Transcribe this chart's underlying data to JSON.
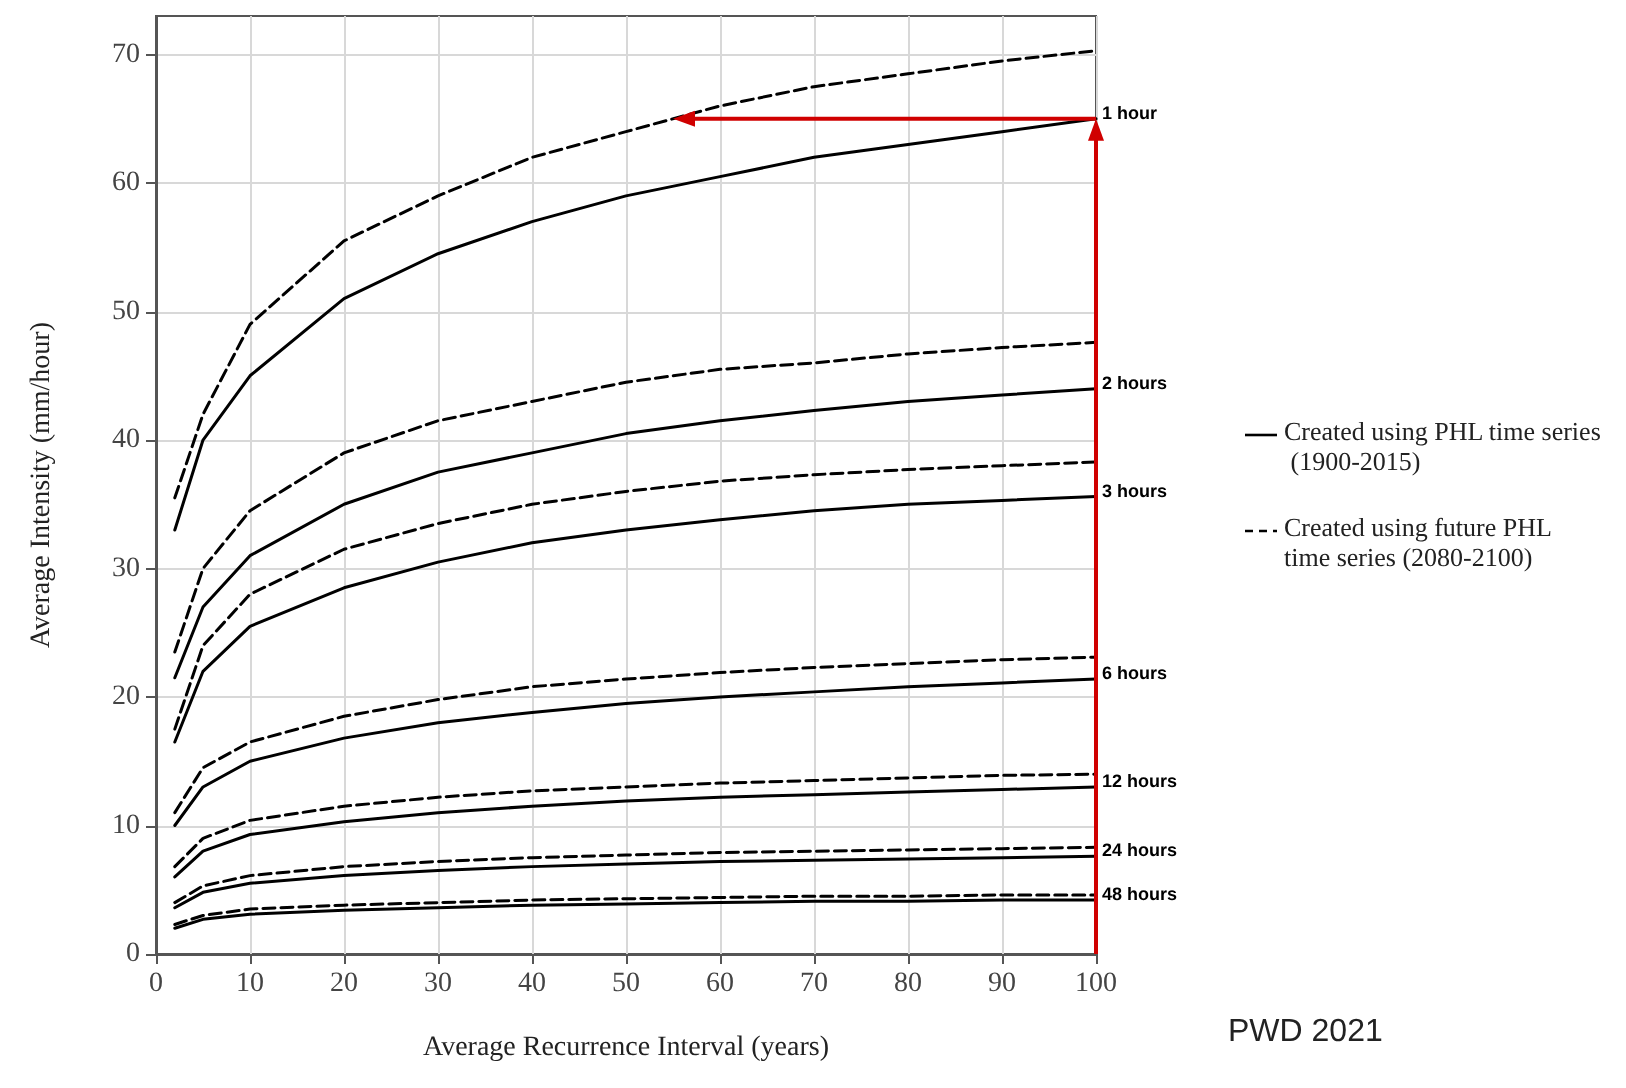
{
  "chart_data": {
    "type": "line",
    "xlabel": "Average Recurrence Interval (years)",
    "ylabel": "Average Intensity (mm/hour)",
    "x": [
      2,
      5,
      10,
      20,
      30,
      40,
      50,
      60,
      70,
      80,
      90,
      100
    ],
    "xlim": [
      0,
      100
    ],
    "xticks": [
      0,
      10,
      20,
      30,
      40,
      50,
      60,
      70,
      80,
      90,
      100
    ],
    "ylim": [
      0,
      73
    ],
    "yticks": [
      0,
      10,
      20,
      30,
      40,
      50,
      60,
      70
    ],
    "grid": true,
    "marker": "none",
    "series": [
      {
        "name": "1 hour",
        "color": "#000000",
        "line_style": "solid",
        "values": [
          33,
          40,
          45,
          51,
          54.5,
          57,
          59,
          60.5,
          62,
          63,
          64,
          65
        ]
      },
      {
        "color": "#000000",
        "line_style": "dashed",
        "values": [
          35.5,
          42,
          49,
          55.5,
          59,
          62,
          64,
          66,
          67.5,
          68.5,
          69.5,
          70.3
        ]
      },
      {
        "name": "2 hours",
        "color": "#000000",
        "line_style": "solid",
        "values": [
          21.5,
          27,
          31,
          35,
          37.5,
          39,
          40.5,
          41.5,
          42.3,
          43,
          43.5,
          44
        ]
      },
      {
        "color": "#000000",
        "line_style": "dashed",
        "values": [
          23.5,
          30,
          34.5,
          39,
          41.5,
          43,
          44.5,
          45.5,
          46,
          46.7,
          47.2,
          47.6
        ]
      },
      {
        "name": "3 hours",
        "color": "#000000",
        "line_style": "solid",
        "values": [
          16.5,
          22,
          25.5,
          28.5,
          30.5,
          32,
          33,
          33.8,
          34.5,
          35,
          35.3,
          35.6
        ]
      },
      {
        "color": "#000000",
        "line_style": "dashed",
        "values": [
          17.5,
          24,
          28,
          31.5,
          33.5,
          35,
          36,
          36.8,
          37.3,
          37.7,
          38,
          38.3
        ]
      },
      {
        "name": "6 hours",
        "color": "#000000",
        "line_style": "solid",
        "values": [
          10,
          13,
          15,
          16.8,
          18,
          18.8,
          19.5,
          20,
          20.4,
          20.8,
          21.1,
          21.4
        ]
      },
      {
        "color": "#000000",
        "line_style": "dashed",
        "values": [
          11,
          14.5,
          16.5,
          18.5,
          19.8,
          20.8,
          21.4,
          21.9,
          22.3,
          22.6,
          22.9,
          23.1
        ]
      },
      {
        "name": "12 hours",
        "color": "#000000",
        "line_style": "solid",
        "values": [
          6,
          8,
          9.3,
          10.3,
          11,
          11.5,
          11.9,
          12.2,
          12.4,
          12.6,
          12.8,
          13
        ]
      },
      {
        "color": "#000000",
        "line_style": "dashed",
        "values": [
          6.8,
          9,
          10.4,
          11.5,
          12.2,
          12.7,
          13,
          13.3,
          13.5,
          13.7,
          13.9,
          14
        ]
      },
      {
        "name": "24 hours",
        "color": "#000000",
        "line_style": "solid",
        "values": [
          3.6,
          4.8,
          5.5,
          6.1,
          6.5,
          6.8,
          7,
          7.2,
          7.3,
          7.4,
          7.5,
          7.6
        ]
      },
      {
        "color": "#000000",
        "line_style": "dashed",
        "values": [
          4,
          5.3,
          6.1,
          6.8,
          7.2,
          7.5,
          7.7,
          7.9,
          8,
          8.1,
          8.2,
          8.3
        ]
      },
      {
        "name": "48 hours",
        "color": "#000000",
        "line_style": "solid",
        "values": [
          2,
          2.7,
          3.1,
          3.4,
          3.6,
          3.8,
          3.9,
          4,
          4.1,
          4.1,
          4.2,
          4.2
        ]
      },
      {
        "color": "#000000",
        "line_style": "dashed",
        "values": [
          2.3,
          3,
          3.5,
          3.8,
          4,
          4.2,
          4.3,
          4.4,
          4.5,
          4.5,
          4.6,
          4.6
        ]
      }
    ],
    "annotations": [
      "Created using PHL time series (1900-2015)",
      "Created using future PHL time series (2080-2100)",
      "PWD 2021"
    ]
  }
}
